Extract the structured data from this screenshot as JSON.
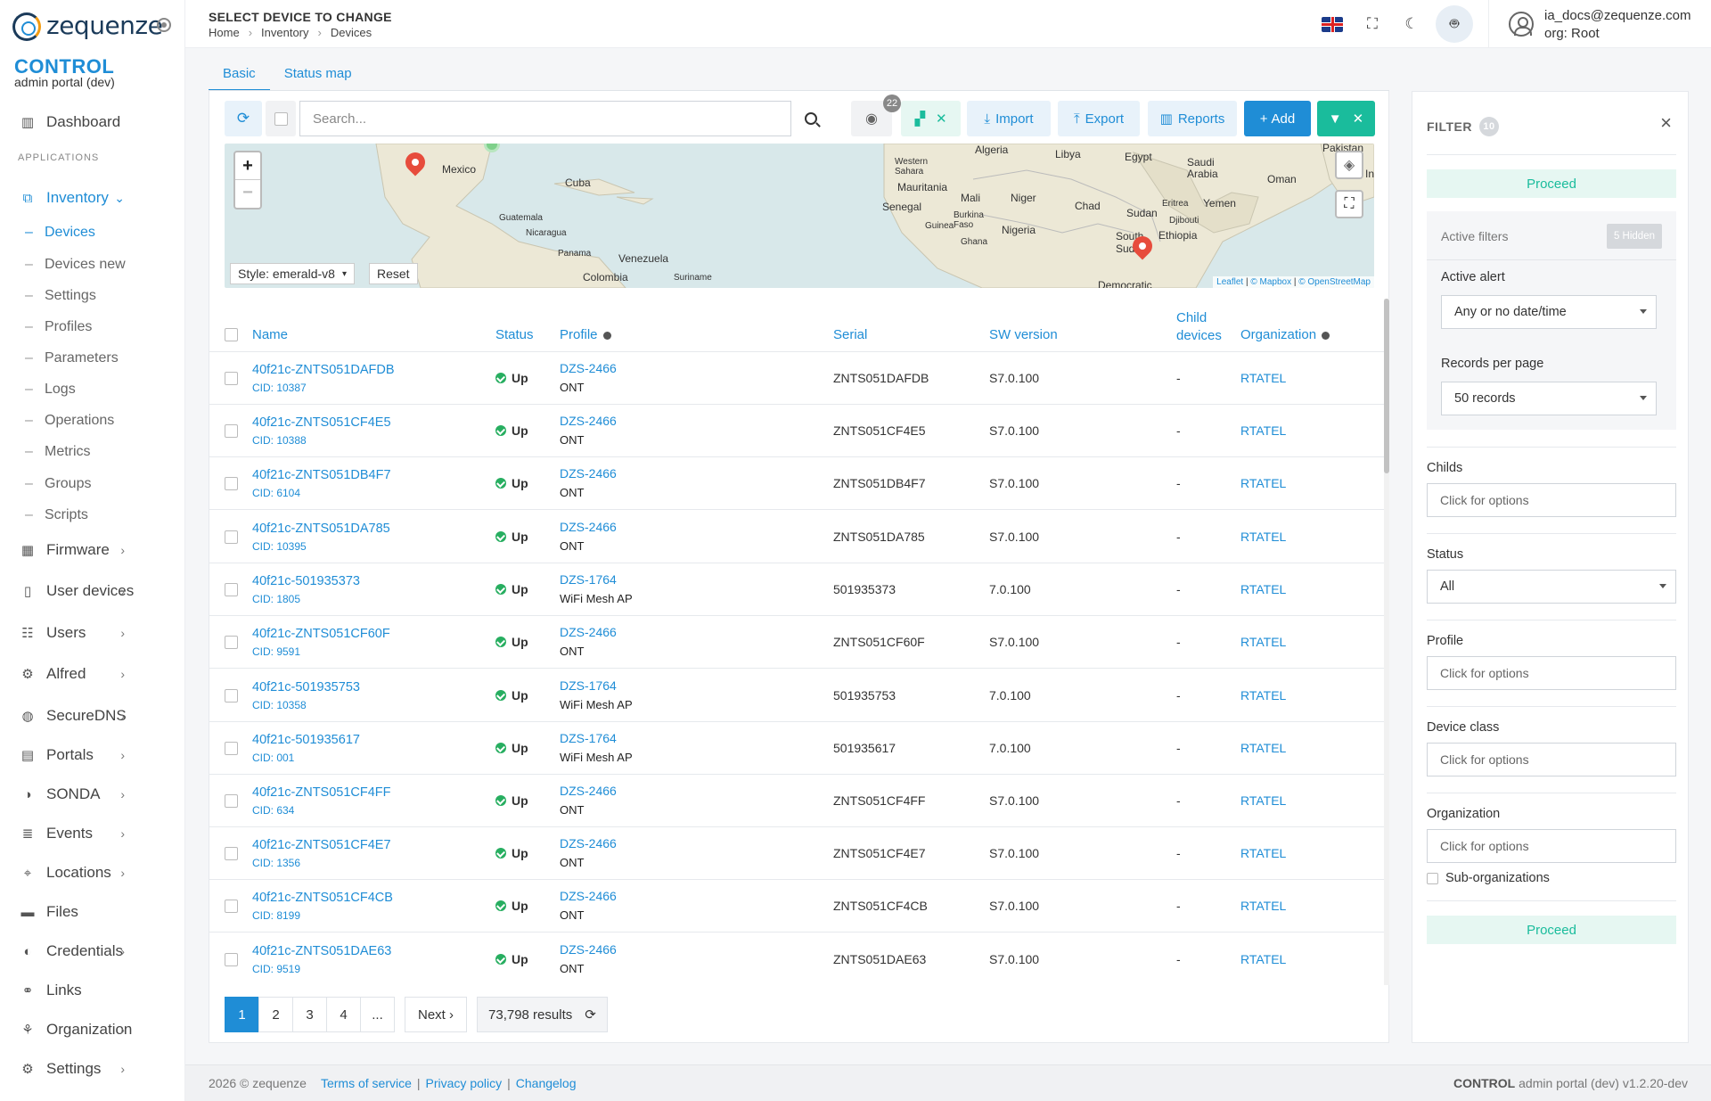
{
  "app": {
    "logo_text": "zequenze",
    "brand_title": "CONTROL",
    "brand_subtitle": "admin portal (dev)"
  },
  "sidebar": {
    "dashboard": "Dashboard",
    "section_label": "APPLICATIONS",
    "inventory": "Inventory",
    "inventory_sub": [
      "Devices",
      "Devices new",
      "Settings",
      "Profiles",
      "Parameters",
      "Logs",
      "Operations",
      "Metrics",
      "Groups",
      "Scripts"
    ],
    "items": [
      "Firmware",
      "User devices",
      "Users",
      "Alfred",
      "SecureDNS",
      "Portals",
      "SONDA",
      "Events",
      "Locations",
      "Files",
      "Credentials",
      "Links",
      "Organization",
      "Settings"
    ]
  },
  "header": {
    "title": "SELECT DEVICE TO CHANGE",
    "breadcrumb": [
      "Home",
      "Inventory",
      "Devices"
    ],
    "user_email": "ia_docs@zequenze.com",
    "user_org": "org: Root"
  },
  "tabs": [
    "Basic",
    "Status map"
  ],
  "toolbar": {
    "search_placeholder": "Search...",
    "hidden_count": "22",
    "import": "Import",
    "export": "Export",
    "reports": "Reports",
    "add": "Add"
  },
  "map": {
    "style_label": "Style: emerald-v8",
    "reset": "Reset",
    "attribution_leaflet": "Leaflet",
    "attribution_mapbox": "© Mapbox",
    "attribution_osm": "© OpenStreetMap",
    "labels": [
      "Mexico",
      "Cuba",
      "Guatemala",
      "Nicaragua",
      "Panama",
      "Venezuela",
      "Colombia",
      "Suriname",
      "Algeria",
      "Libya",
      "Egypt",
      "Western Sahara",
      "Mauritania",
      "Mali",
      "Niger",
      "Chad",
      "Sudan",
      "Eritrea",
      "Yemen",
      "Saudi Arabia",
      "Oman",
      "Pakistan",
      "In",
      "Senegal",
      "Burkina Faso",
      "Guinea",
      "Ghana",
      "Nigeria",
      "Djibouti",
      "Ethiopia",
      "South Sudan",
      "Democratic"
    ]
  },
  "table": {
    "headers": {
      "name": "Name",
      "status": "Status",
      "profile": "Profile",
      "serial": "Serial",
      "sw_version": "SW version",
      "child_devices_1": "Child",
      "child_devices_2": "devices",
      "organization": "Organization"
    },
    "rows": [
      {
        "name": "40f21c-ZNTS051DAFDB",
        "cid": "CID: 10387",
        "status": "Up",
        "profile": "DZS-2466",
        "profile_type": "ONT",
        "serial": "ZNTS051DAFDB",
        "sw": "S7.0.100",
        "child": "-",
        "org": "RTATEL"
      },
      {
        "name": "40f21c-ZNTS051CF4E5",
        "cid": "CID: 10388",
        "status": "Up",
        "profile": "DZS-2466",
        "profile_type": "ONT",
        "serial": "ZNTS051CF4E5",
        "sw": "S7.0.100",
        "child": "-",
        "org": "RTATEL"
      },
      {
        "name": "40f21c-ZNTS051DB4F7",
        "cid": "CID: 6104",
        "status": "Up",
        "profile": "DZS-2466",
        "profile_type": "ONT",
        "serial": "ZNTS051DB4F7",
        "sw": "S7.0.100",
        "child": "-",
        "org": "RTATEL"
      },
      {
        "name": "40f21c-ZNTS051DA785",
        "cid": "CID: 10395",
        "status": "Up",
        "profile": "DZS-2466",
        "profile_type": "ONT",
        "serial": "ZNTS051DA785",
        "sw": "S7.0.100",
        "child": "-",
        "org": "RTATEL"
      },
      {
        "name": "40f21c-501935373",
        "cid": "CID: 1805",
        "status": "Up",
        "profile": "DZS-1764",
        "profile_type": "WiFi Mesh AP",
        "serial": "501935373",
        "sw": "7.0.100",
        "child": "-",
        "org": "RTATEL"
      },
      {
        "name": "40f21c-ZNTS051CF60F",
        "cid": "CID: 9591",
        "status": "Up",
        "profile": "DZS-2466",
        "profile_type": "ONT",
        "serial": "ZNTS051CF60F",
        "sw": "S7.0.100",
        "child": "-",
        "org": "RTATEL"
      },
      {
        "name": "40f21c-501935753",
        "cid": "CID: 10358",
        "status": "Up",
        "profile": "DZS-1764",
        "profile_type": "WiFi Mesh AP",
        "serial": "501935753",
        "sw": "7.0.100",
        "child": "-",
        "org": "RTATEL"
      },
      {
        "name": "40f21c-501935617",
        "cid": "CID: 001",
        "status": "Up",
        "profile": "DZS-1764",
        "profile_type": "WiFi Mesh AP",
        "serial": "501935617",
        "sw": "7.0.100",
        "child": "-",
        "org": "RTATEL"
      },
      {
        "name": "40f21c-ZNTS051CF4FF",
        "cid": "CID: 634",
        "status": "Up",
        "profile": "DZS-2466",
        "profile_type": "ONT",
        "serial": "ZNTS051CF4FF",
        "sw": "S7.0.100",
        "child": "-",
        "org": "RTATEL"
      },
      {
        "name": "40f21c-ZNTS051CF4E7",
        "cid": "CID: 1356",
        "status": "Up",
        "profile": "DZS-2466",
        "profile_type": "ONT",
        "serial": "ZNTS051CF4E7",
        "sw": "S7.0.100",
        "child": "-",
        "org": "RTATEL"
      },
      {
        "name": "40f21c-ZNTS051CF4CB",
        "cid": "CID: 8199",
        "status": "Up",
        "profile": "DZS-2466",
        "profile_type": "ONT",
        "serial": "ZNTS051CF4CB",
        "sw": "S7.0.100",
        "child": "-",
        "org": "RTATEL"
      },
      {
        "name": "40f21c-ZNTS051DAE63",
        "cid": "CID: 9519",
        "status": "Up",
        "profile": "DZS-2466",
        "profile_type": "ONT",
        "serial": "ZNTS051DAE63",
        "sw": "S7.0.100",
        "child": "-",
        "org": "RTATEL"
      }
    ]
  },
  "pagination": {
    "pages": [
      "1",
      "2",
      "3",
      "4",
      "..."
    ],
    "next": "Next ›",
    "results": "73,798 results"
  },
  "filter": {
    "title": "FILTER",
    "count": "10",
    "proceed": "Proceed",
    "active_filters": "Active filters",
    "hidden": "5 Hidden",
    "active_alert_label": "Active alert",
    "active_alert_value": "Any or no date/time",
    "records_label": "Records per page",
    "records_value": "50 records",
    "childs_label": "Childs",
    "childs_placeholder": "Click for options",
    "status_label": "Status",
    "status_value": "All",
    "profile_label": "Profile",
    "profile_placeholder": "Click for options",
    "device_class_label": "Device class",
    "device_class_placeholder": "Click for options",
    "organization_label": "Organization",
    "organization_placeholder": "Click for options",
    "sub_orgs": "Sub-organizations"
  },
  "footer": {
    "copyright": "2026 © zequenze",
    "terms": "Terms of service",
    "privacy": "Privacy policy",
    "changelog": "Changelog",
    "version_brand": "CONTROL",
    "version_text": "admin portal (dev) v1.2.20-dev"
  },
  "colors": {
    "accent": "#1f8dd6",
    "success": "#1abc9c",
    "status_up": "#27ae60",
    "pin": "#e74c3c"
  }
}
